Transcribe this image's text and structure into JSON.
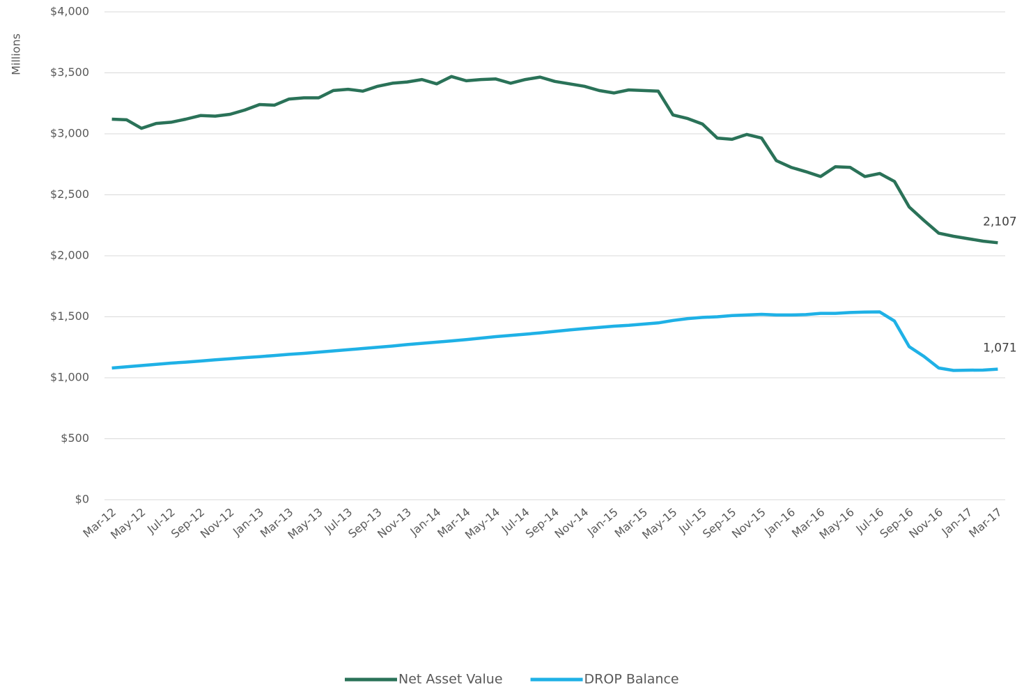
{
  "chart_data": {
    "type": "line",
    "y_label": "Millions",
    "categories": [
      "Mar-12",
      null,
      "May-12",
      null,
      "Jul-12",
      null,
      "Sep-12",
      null,
      "Nov-12",
      null,
      "Jan-13",
      null,
      "Mar-13",
      null,
      "May-13",
      null,
      "Jul-13",
      null,
      "Sep-13",
      null,
      "Nov-13",
      null,
      "Jan-14",
      null,
      "Mar-14",
      null,
      "May-14",
      null,
      "Jul-14",
      null,
      "Sep-14",
      null,
      "Nov-14",
      null,
      "Jan-15",
      null,
      "Mar-15",
      null,
      "May-15",
      null,
      "Jul-15",
      null,
      "Sep-15",
      null,
      "Nov-15",
      null,
      "Jan-16",
      null,
      "Mar-16",
      null,
      "May-16",
      null,
      "Jul-16",
      null,
      "Sep-16",
      null,
      "Nov-16",
      null,
      "Jan-17",
      null,
      "Mar-17"
    ],
    "series": [
      {
        "name": "Net Asset Value",
        "color": "#2a7258",
        "values": [
          3120,
          3115,
          3045,
          3085,
          3095,
          3120,
          3150,
          3145,
          3160,
          3195,
          3240,
          3235,
          3285,
          3295,
          3295,
          3355,
          3365,
          3350,
          3390,
          3415,
          3425,
          3445,
          3410,
          3470,
          3435,
          3445,
          3450,
          3415,
          3445,
          3465,
          3430,
          3410,
          3390,
          3355,
          3335,
          3360,
          3355,
          3350,
          3155,
          3125,
          3080,
          2965,
          2955,
          2995,
          2965,
          2780,
          2725,
          2690,
          2650,
          2730,
          2725,
          2650,
          2675,
          2610,
          2400,
          2290,
          2185,
          2160,
          2140,
          2120,
          2107
        ],
        "value_labels": [
          null,
          null,
          null,
          null,
          null,
          null,
          null,
          null,
          null,
          null,
          null,
          null,
          null,
          null,
          null,
          null,
          null,
          null,
          null,
          null,
          null,
          null,
          null,
          null,
          null,
          null,
          null,
          null,
          null,
          null,
          null,
          null,
          null,
          null,
          null,
          null,
          null,
          null,
          null,
          null,
          null,
          null,
          null,
          null,
          null,
          null,
          null,
          null,
          null,
          null,
          null,
          null,
          null,
          null,
          null,
          null,
          null,
          null,
          null,
          null,
          "2,107"
        ]
      },
      {
        "name": "DROP Balance",
        "color": "#1fb1e6",
        "values": [
          1080,
          1090,
          1100,
          1110,
          1120,
          1128,
          1137,
          1147,
          1156,
          1165,
          1173,
          1182,
          1192,
          1200,
          1210,
          1220,
          1230,
          1240,
          1250,
          1260,
          1272,
          1282,
          1292,
          1302,
          1313,
          1325,
          1337,
          1347,
          1357,
          1368,
          1380,
          1392,
          1403,
          1413,
          1423,
          1430,
          1440,
          1450,
          1470,
          1485,
          1495,
          1500,
          1510,
          1515,
          1520,
          1515,
          1515,
          1518,
          1528,
          1528,
          1535,
          1538,
          1540,
          1465,
          1255,
          1175,
          1080,
          1060,
          1062,
          1063,
          1071
        ],
        "value_labels": [
          null,
          null,
          null,
          null,
          null,
          null,
          null,
          null,
          null,
          null,
          null,
          null,
          null,
          null,
          null,
          null,
          null,
          null,
          null,
          null,
          null,
          null,
          null,
          null,
          null,
          null,
          null,
          null,
          null,
          null,
          null,
          null,
          null,
          null,
          null,
          null,
          null,
          null,
          null,
          null,
          null,
          null,
          null,
          null,
          null,
          null,
          null,
          null,
          null,
          null,
          null,
          null,
          null,
          null,
          null,
          null,
          null,
          null,
          null,
          null,
          "1,071"
        ]
      }
    ],
    "ylim": [
      0,
      4000
    ],
    "yticks": [
      {
        "value": 0,
        "label": "$0"
      },
      {
        "value": 500,
        "label": "$500"
      },
      {
        "value": 1000,
        "label": "$1,000"
      },
      {
        "value": 1500,
        "label": "$1,500"
      },
      {
        "value": 2000,
        "label": "$2,000"
      },
      {
        "value": 2500,
        "label": "$2,500"
      },
      {
        "value": 3000,
        "label": "$3,000"
      },
      {
        "value": 3500,
        "label": "$3,500"
      },
      {
        "value": 4000,
        "label": "$4,000"
      }
    ],
    "grid": true,
    "legend": "bottom"
  }
}
